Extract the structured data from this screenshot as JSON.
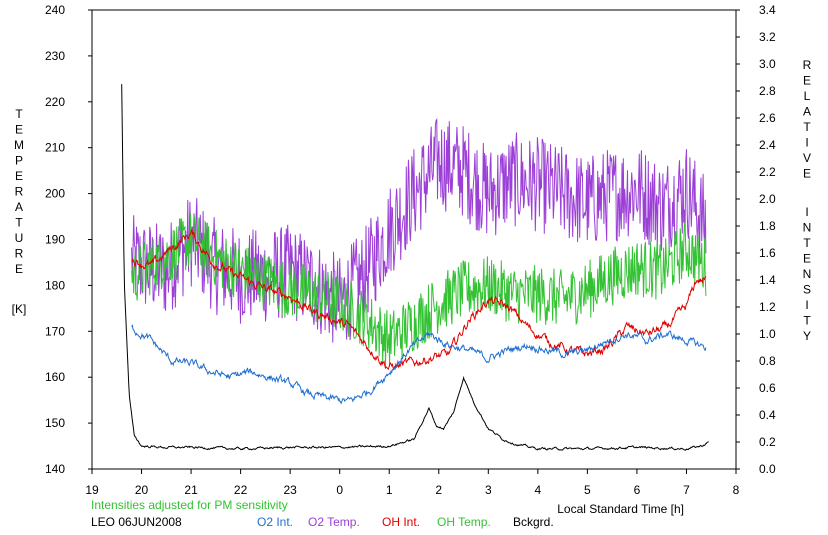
{
  "chart_data": {
    "type": "line",
    "xlabel": "Local Standard Time [h]",
    "ylabel_left_letters": [
      "T",
      "E",
      "M",
      "P",
      "E",
      "R",
      "A",
      "T",
      "U",
      "R",
      "E"
    ],
    "ylabel_left_unit": "[K]",
    "ylabel_right_word1": [
      "R",
      "E",
      "L",
      "A",
      "T",
      "I",
      "V",
      "E"
    ],
    "ylabel_right_word2": [
      "I",
      "N",
      "T",
      "E",
      "N",
      "S",
      "I",
      "T",
      "Y"
    ],
    "x_ticks": [
      "19",
      "20",
      "21",
      "22",
      "23",
      "0",
      "1",
      "2",
      "3",
      "4",
      "5",
      "6",
      "7",
      "8"
    ],
    "x_range": [
      19,
      32
    ],
    "y_left_range": [
      140,
      240
    ],
    "y_left_ticks": [
      140,
      150,
      160,
      170,
      180,
      190,
      200,
      210,
      220,
      230,
      240
    ],
    "y_right_range": [
      0.0,
      3.4
    ],
    "y_right_ticks": [
      "0.0",
      "0.2",
      "0.4",
      "0.6",
      "0.8",
      "1.0",
      "1.2",
      "1.4",
      "1.6",
      "1.8",
      "2.0",
      "2.2",
      "2.4",
      "2.6",
      "2.8",
      "3.0",
      "3.2",
      "3.4"
    ],
    "note": "Intensities adjusted for PM sensitivity",
    "station": "LEO 06JUN2008",
    "legend": [
      {
        "label": "O2 Int.",
        "color": "#1f6fd0"
      },
      {
        "label": "O2 Temp.",
        "color": "#9b3fd6"
      },
      {
        "label": "OH Int.",
        "color": "#e00000"
      },
      {
        "label": "OH Temp.",
        "color": "#33c233"
      },
      {
        "label": "Bckgrd.",
        "color": "#000000"
      }
    ],
    "series": [
      {
        "name": "O2 Temp.",
        "axis": "left",
        "color": "#9b3fd6",
        "noise": 10.5,
        "x_start": 19.8,
        "x_end": 31.4,
        "x": [
          19.8,
          20.5,
          21.0,
          21.5,
          22.0,
          22.5,
          23.0,
          23.5,
          24.0,
          24.5,
          25.0,
          25.5,
          26.0,
          26.5,
          27.0,
          27.5,
          28.0,
          28.5,
          29.0,
          29.5,
          30.0,
          30.5,
          31.0,
          31.4
        ],
        "y": [
          185,
          183,
          190,
          184,
          182,
          182,
          183,
          180,
          176,
          182,
          192,
          200,
          207,
          205,
          200,
          203,
          202,
          200,
          198,
          200,
          201,
          197,
          201,
          193
        ]
      },
      {
        "name": "OH Temp.",
        "axis": "left",
        "color": "#33c233",
        "noise": 6.5,
        "x_start": 19.8,
        "x_end": 31.4,
        "x": [
          19.8,
          20.5,
          21.0,
          21.5,
          22.0,
          22.5,
          23.0,
          23.5,
          24.0,
          24.5,
          25.0,
          25.5,
          26.0,
          26.5,
          27.0,
          27.5,
          28.0,
          28.5,
          29.0,
          29.5,
          30.0,
          30.5,
          31.0,
          31.4
        ],
        "y": [
          182,
          186,
          190,
          186,
          183,
          181,
          179,
          178,
          176,
          173,
          168,
          172,
          176,
          179,
          180,
          178,
          178,
          177,
          179,
          182,
          184,
          183,
          188,
          184
        ]
      },
      {
        "name": "OH Int.",
        "axis": "right",
        "color": "#e00000",
        "noise": 0.025,
        "x_start": 19.8,
        "x_end": 31.4,
        "x": [
          19.8,
          20.2,
          20.5,
          21.0,
          21.4,
          21.8,
          22.2,
          22.6,
          23.0,
          23.4,
          23.8,
          24.2,
          24.6,
          25.0,
          25.4,
          25.8,
          26.2,
          26.6,
          27.0,
          27.4,
          27.8,
          28.2,
          28.6,
          29.0,
          29.4,
          29.8,
          30.2,
          30.6,
          31.0,
          31.2,
          31.4
        ],
        "y": [
          1.55,
          1.5,
          1.6,
          1.75,
          1.55,
          1.45,
          1.38,
          1.32,
          1.28,
          1.18,
          1.12,
          1.05,
          0.9,
          0.75,
          0.78,
          0.82,
          0.85,
          1.1,
          1.25,
          1.2,
          1.05,
          0.95,
          0.88,
          0.85,
          0.9,
          1.05,
          1.0,
          1.05,
          1.2,
          1.4,
          1.4
        ]
      },
      {
        "name": "O2 Int.",
        "axis": "right",
        "color": "#1f6fd0",
        "noise": 0.02,
        "x_start": 19.8,
        "x_end": 31.4,
        "x": [
          19.8,
          20.2,
          20.6,
          21.0,
          21.4,
          21.8,
          22.2,
          22.6,
          23.0,
          23.4,
          23.8,
          24.2,
          24.6,
          25.0,
          25.4,
          25.8,
          26.2,
          26.6,
          27.0,
          27.4,
          27.8,
          28.2,
          28.6,
          29.0,
          29.4,
          29.8,
          30.2,
          30.6,
          31.0,
          31.4
        ],
        "y": [
          1.05,
          0.95,
          0.8,
          0.78,
          0.72,
          0.68,
          0.72,
          0.68,
          0.63,
          0.55,
          0.52,
          0.5,
          0.58,
          0.72,
          0.88,
          1.0,
          0.92,
          0.88,
          0.82,
          0.88,
          0.92,
          0.88,
          0.85,
          0.88,
          0.95,
          1.0,
          0.95,
          1.0,
          0.95,
          0.9
        ]
      },
      {
        "name": "Bckgrd.",
        "axis": "right",
        "color": "#000000",
        "noise": 0.006,
        "x_start": 19.6,
        "x_end": 31.45,
        "x": [
          19.6,
          19.65,
          19.75,
          19.85,
          20.0,
          20.5,
          21.0,
          22.0,
          23.0,
          24.0,
          25.0,
          25.5,
          25.8,
          25.95,
          26.1,
          26.3,
          26.5,
          26.7,
          27.0,
          27.3,
          27.6,
          28.0,
          29.0,
          30.0,
          31.0,
          31.3,
          31.45
        ],
        "y": [
          2.85,
          1.4,
          0.55,
          0.25,
          0.17,
          0.16,
          0.16,
          0.15,
          0.16,
          0.16,
          0.17,
          0.22,
          0.45,
          0.32,
          0.3,
          0.42,
          0.68,
          0.5,
          0.3,
          0.22,
          0.18,
          0.15,
          0.15,
          0.16,
          0.15,
          0.17,
          0.2
        ]
      }
    ]
  }
}
